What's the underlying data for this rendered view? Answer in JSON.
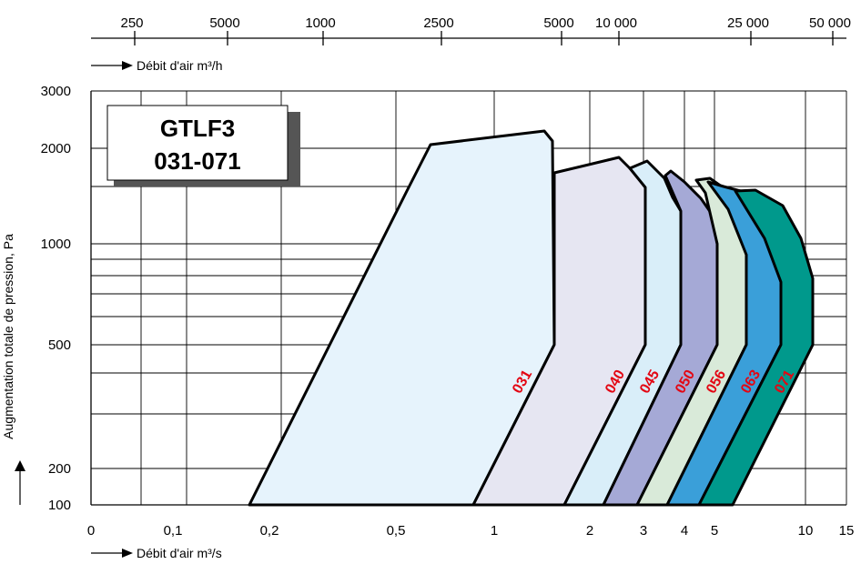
{
  "chart_data": {
    "type": "area",
    "title": [
      "GTLF3",
      "031-071"
    ],
    "ylabel": "Augmentation totale de pression, Pa",
    "xlabel_bottom": "Débit d'air m³/s",
    "xlabel_top": "Débit d'air m³/h",
    "ylim": [
      100,
      3000
    ],
    "xlim": [
      0,
      15
    ],
    "y_ticks": [
      "3000",
      "2000",
      "1000",
      "500",
      "200",
      "100"
    ],
    "x_ticks_bottom": [
      "0",
      "0,1",
      "0,2",
      "0,5",
      "1",
      "2",
      "3",
      "4",
      "5",
      "10",
      "15"
    ],
    "x_ticks_top": [
      "250",
      "5000",
      "1000",
      "2500",
      "5000",
      "10 000",
      "25 000",
      "50 000"
    ],
    "grid": true,
    "series": [
      {
        "name": "031",
        "color": "#e6f3fc"
      },
      {
        "name": "040",
        "color": "#e6e6f2"
      },
      {
        "name": "045",
        "color": "#d9eef9"
      },
      {
        "name": "050",
        "color": "#a5a9d6"
      },
      {
        "name": "056",
        "color": "#d9ead9"
      },
      {
        "name": "063",
        "color": "#3a9fd9"
      },
      {
        "name": "071",
        "color": "#00998c"
      }
    ]
  }
}
